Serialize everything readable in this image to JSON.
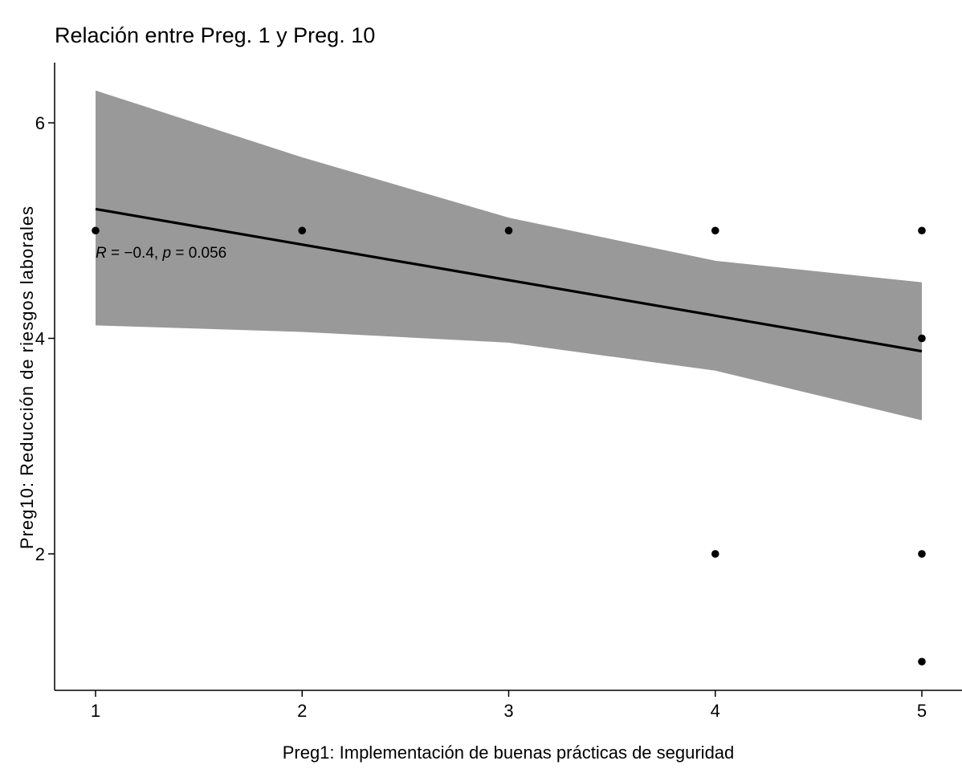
{
  "chart_data": {
    "type": "scatter",
    "title": "Relación entre Preg. 1 y Preg. 10",
    "xlabel": "Preg1: Implementación de buenas prácticas de seguridad",
    "ylabel": "Preg10: Reducción de riesgos laborales",
    "xlim": [
      0.8,
      5.2
    ],
    "ylim": [
      0.8,
      6.5
    ],
    "x_ticks": [
      1,
      2,
      3,
      4,
      5
    ],
    "y_ticks": [
      2,
      4,
      6
    ],
    "grid": false,
    "points": [
      {
        "x": 1,
        "y": 5
      },
      {
        "x": 2,
        "y": 5
      },
      {
        "x": 3,
        "y": 5
      },
      {
        "x": 4,
        "y": 5
      },
      {
        "x": 4,
        "y": 2
      },
      {
        "x": 5,
        "y": 5
      },
      {
        "x": 5,
        "y": 4
      },
      {
        "x": 5,
        "y": 2
      },
      {
        "x": 5,
        "y": 1
      }
    ],
    "regression": {
      "x": [
        1,
        2,
        3,
        4,
        5
      ],
      "fit": [
        5.2,
        4.87,
        4.54,
        4.21,
        3.88
      ],
      "lower": [
        4.12,
        4.06,
        3.96,
        3.7,
        3.24
      ],
      "upper": [
        6.3,
        5.68,
        5.12,
        4.72,
        4.52
      ],
      "line_color": "#000000",
      "band_color": "#999999"
    },
    "annotation": {
      "r_symbol": "R",
      "r_value": " = −0.4, ",
      "p_symbol": "p",
      "p_value": " = 0.056",
      "x": 1,
      "y": 4.8
    },
    "point_color": "#000000"
  }
}
